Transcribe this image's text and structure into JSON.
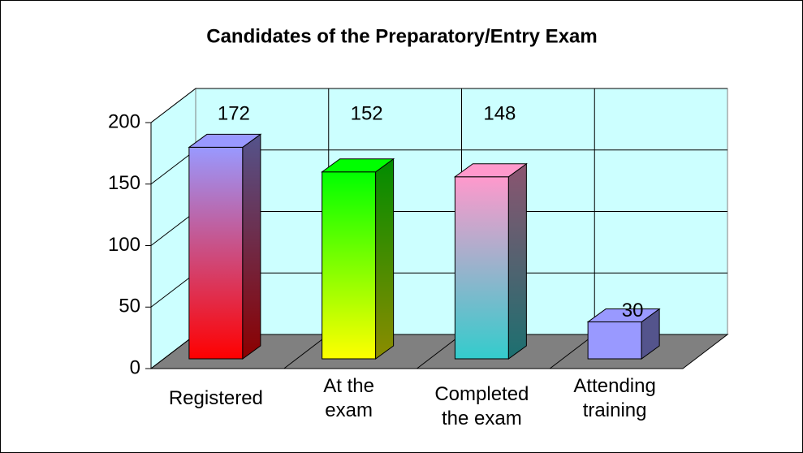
{
  "chart_data": {
    "type": "bar3d",
    "title": "Candidates of the Preparatory/Entry Exam",
    "categories": [
      "Registered",
      "At the exam",
      "Completed the exam",
      "Attending training"
    ],
    "values": [
      172,
      152,
      148,
      30
    ],
    "colors": [
      [
        "#9999ff",
        "#ff0000"
      ],
      [
        "#00ff00",
        "#ffff00"
      ],
      [
        "#ff99cc",
        "#33cccc"
      ],
      [
        "#9999ff",
        "#9999ff"
      ]
    ],
    "ylim": [
      0,
      200
    ],
    "yticks": [
      0,
      50,
      100,
      150,
      200
    ],
    "grid": true
  }
}
